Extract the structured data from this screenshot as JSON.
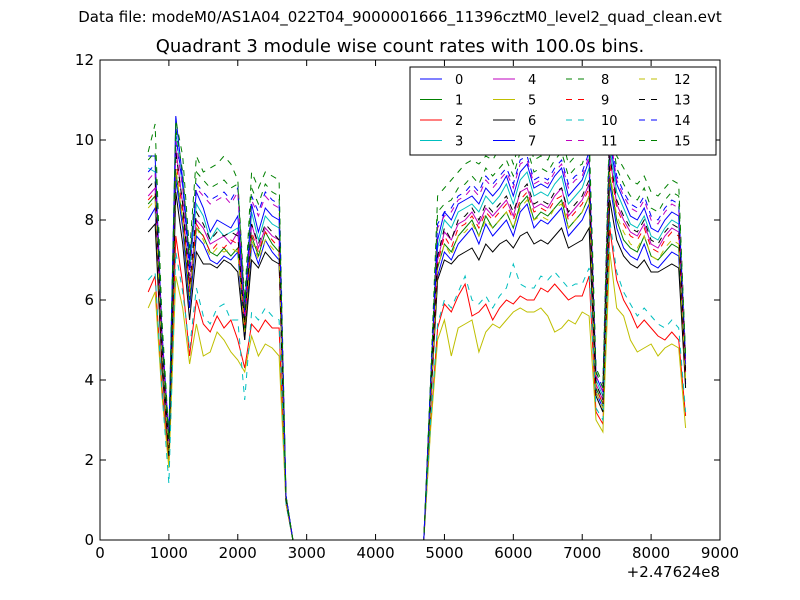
{
  "figure": {
    "suptitle": "Data file: modeM0/AS1A04_022T04_9000001666_11396cztM0_level2_quad_clean.evt"
  },
  "chart_data": {
    "type": "line",
    "title": "Quadrant 3 module wise count rates with 100.0s bins.",
    "xlabel": "",
    "ylabel": "",
    "x_offset_label": "+2.47624e8",
    "xlim": [
      0,
      9000
    ],
    "ylim": [
      0,
      12
    ],
    "xticks": [
      0,
      1000,
      2000,
      3000,
      4000,
      5000,
      6000,
      7000,
      8000,
      9000
    ],
    "xtick_labels": [
      "0",
      "1000",
      "2000",
      "3000",
      "4000",
      "5000",
      "6000",
      "7000",
      "8000",
      "9000"
    ],
    "yticks": [
      0,
      2,
      4,
      6,
      8,
      10,
      12
    ],
    "ytick_labels": [
      "0",
      "2",
      "4",
      "6",
      "8",
      "10",
      "12"
    ],
    "grid": false,
    "legend_position": "top-right",
    "legend_columns": 4,
    "x": [
      700,
      800,
      900,
      1000,
      1100,
      1200,
      1300,
      1400,
      1500,
      1600,
      1700,
      1800,
      1900,
      2000,
      2100,
      2200,
      2300,
      2400,
      2500,
      2600,
      2700,
      2800,
      2900,
      4700,
      4800,
      4900,
      5000,
      5100,
      5200,
      5300,
      5400,
      5500,
      5600,
      5700,
      5800,
      5900,
      6000,
      6100,
      6200,
      6300,
      6400,
      6500,
      6600,
      6700,
      6800,
      6900,
      7000,
      7100,
      7200,
      7300,
      7400,
      7500,
      7600,
      7700,
      7800,
      7900,
      8000,
      8100,
      8200,
      8300,
      8400,
      8500
    ],
    "series": [
      {
        "name": "0",
        "color": "#0000ff",
        "dash": false,
        "values": [
          8.0,
          8.3,
          4.5,
          2.3,
          9.0,
          7.8,
          5.8,
          7.6,
          7.4,
          7.0,
          6.9,
          7.1,
          7.0,
          7.2,
          5.0,
          7.4,
          6.9,
          7.5,
          7.2,
          7.0,
          1.0,
          0,
          0,
          0,
          3.5,
          6.6,
          7.2,
          7.0,
          7.4,
          7.6,
          7.8,
          7.4,
          7.9,
          7.6,
          7.8,
          8.0,
          7.6,
          8.2,
          8.4,
          7.8,
          8.0,
          7.9,
          8.1,
          8.3,
          7.6,
          7.8,
          8.0,
          8.4,
          3.7,
          3.3,
          8.9,
          7.8,
          7.3,
          7.1,
          7.0,
          7.4,
          6.9,
          6.8,
          7.0,
          7.2,
          7.1,
          3.9
        ]
      },
      {
        "name": "1",
        "color": "#008000",
        "dash": false,
        "values": [
          8.4,
          8.6,
          4.6,
          2.2,
          9.2,
          8.0,
          6.0,
          7.8,
          7.6,
          7.2,
          7.1,
          7.3,
          7.1,
          7.3,
          5.2,
          7.6,
          7.1,
          7.7,
          7.4,
          7.2,
          1.0,
          0,
          0,
          0,
          3.6,
          6.8,
          7.4,
          7.2,
          7.6,
          7.8,
          8.0,
          7.6,
          8.1,
          7.8,
          8.0,
          8.2,
          7.8,
          8.4,
          8.6,
          8.0,
          8.2,
          8.1,
          8.3,
          8.5,
          7.8,
          8.0,
          8.2,
          8.6,
          3.8,
          3.4,
          9.1,
          8.0,
          7.5,
          7.3,
          7.2,
          7.6,
          7.1,
          7.0,
          7.2,
          7.4,
          7.3,
          4.0
        ]
      },
      {
        "name": "2",
        "color": "#ff0000",
        "dash": false,
        "values": [
          6.2,
          6.6,
          3.8,
          1.9,
          7.6,
          6.4,
          4.6,
          6.0,
          5.4,
          5.2,
          5.6,
          5.3,
          5.5,
          5.0,
          4.3,
          5.4,
          5.2,
          5.5,
          5.3,
          5.3,
          0.9,
          0,
          0,
          0,
          2.9,
          5.3,
          5.9,
          5.7,
          6.1,
          6.4,
          5.6,
          5.7,
          5.9,
          5.5,
          5.8,
          6.0,
          5.9,
          6.1,
          6.0,
          6.0,
          6.3,
          6.2,
          6.4,
          6.2,
          6.0,
          6.1,
          6.1,
          6.6,
          3.2,
          2.9,
          7.8,
          6.5,
          6.0,
          5.7,
          5.3,
          5.5,
          5.3,
          5.1,
          5.0,
          5.2,
          5.0,
          3.1
        ]
      },
      {
        "name": "3",
        "color": "#00bfbf",
        "dash": false,
        "values": [
          9.3,
          9.2,
          5.0,
          2.5,
          10.2,
          8.8,
          6.8,
          8.4,
          8.1,
          7.5,
          7.8,
          7.6,
          7.7,
          7.8,
          5.6,
          8.2,
          7.5,
          8.1,
          7.9,
          7.8,
          1.1,
          0,
          0,
          0,
          3.9,
          7.3,
          8.0,
          7.8,
          8.2,
          8.3,
          8.4,
          8.2,
          8.6,
          8.4,
          8.6,
          8.9,
          8.4,
          9.0,
          9.2,
          8.6,
          8.7,
          8.6,
          8.9,
          9.1,
          8.4,
          8.6,
          8.8,
          9.3,
          4.0,
          3.6,
          9.8,
          8.7,
          8.3,
          7.9,
          7.8,
          8.1,
          7.6,
          7.5,
          7.8,
          8.0,
          7.9,
          4.3
        ]
      },
      {
        "name": "4",
        "color": "#bf00bf",
        "dash": false,
        "values": [
          8.6,
          8.8,
          4.7,
          2.4,
          9.8,
          8.4,
          6.3,
          8.0,
          7.8,
          7.4,
          7.5,
          7.6,
          7.4,
          7.7,
          5.4,
          7.9,
          7.3,
          7.8,
          7.6,
          7.5,
          1.1,
          0,
          0,
          0,
          3.7,
          7.0,
          7.7,
          7.5,
          7.9,
          8.0,
          8.2,
          7.9,
          8.3,
          8.1,
          8.3,
          8.5,
          8.1,
          8.7,
          8.8,
          8.3,
          8.4,
          8.3,
          8.6,
          8.8,
          8.1,
          8.3,
          8.5,
          8.9,
          3.9,
          3.5,
          9.6,
          8.4,
          8.0,
          7.7,
          7.6,
          7.9,
          7.4,
          7.3,
          7.6,
          7.8,
          7.7,
          4.2
        ]
      },
      {
        "name": "5",
        "color": "#bfbf00",
        "dash": false,
        "values": [
          5.8,
          6.2,
          3.6,
          1.8,
          6.6,
          5.8,
          4.4,
          5.4,
          4.6,
          4.7,
          5.2,
          5.0,
          4.7,
          4.5,
          4.2,
          5.1,
          4.6,
          4.9,
          4.8,
          4.6,
          0.9,
          0,
          0,
          0,
          2.8,
          5.0,
          5.5,
          4.6,
          5.3,
          5.4,
          5.5,
          4.7,
          5.2,
          5.4,
          5.3,
          5.5,
          5.7,
          5.8,
          5.7,
          5.7,
          5.8,
          5.6,
          5.2,
          5.3,
          5.5,
          5.4,
          5.7,
          5.6,
          3.0,
          2.7,
          7.2,
          5.8,
          5.6,
          5.0,
          4.7,
          4.8,
          4.9,
          4.6,
          4.8,
          4.9,
          4.8,
          2.8
        ]
      },
      {
        "name": "6",
        "color": "#000000",
        "dash": false,
        "values": [
          7.7,
          7.9,
          4.3,
          2.1,
          8.7,
          7.4,
          5.5,
          7.2,
          6.9,
          6.9,
          6.8,
          7.0,
          6.9,
          6.7,
          5.0,
          7.0,
          6.8,
          7.2,
          7.0,
          6.9,
          1.0,
          0,
          0,
          0,
          3.4,
          6.5,
          7.0,
          6.9,
          7.1,
          7.2,
          7.3,
          7.0,
          7.4,
          7.2,
          7.4,
          7.5,
          7.3,
          7.6,
          7.7,
          7.4,
          7.5,
          7.4,
          7.6,
          7.8,
          7.3,
          7.4,
          7.5,
          7.8,
          3.6,
          3.2,
          8.5,
          7.5,
          7.1,
          6.9,
          6.8,
          7.0,
          6.7,
          6.7,
          6.8,
          6.9,
          6.8,
          3.8
        ]
      },
      {
        "name": "7",
        "color": "#0000ff",
        "dash": false,
        "values": [
          9.6,
          9.6,
          5.2,
          2.6,
          10.6,
          9.0,
          7.0,
          8.7,
          8.3,
          7.7,
          8.0,
          7.9,
          7.8,
          8.1,
          5.8,
          8.4,
          7.7,
          8.3,
          8.1,
          8.0,
          1.1,
          0,
          0,
          0,
          4.0,
          7.5,
          8.2,
          8.0,
          8.4,
          8.5,
          8.6,
          8.4,
          8.8,
          8.6,
          8.8,
          9.1,
          8.6,
          9.2,
          9.4,
          8.8,
          8.9,
          8.8,
          9.1,
          9.3,
          8.6,
          8.8,
          9.0,
          9.5,
          4.1,
          3.7,
          10.0,
          8.9,
          8.5,
          8.1,
          8.0,
          8.3,
          7.8,
          7.7,
          8.0,
          8.2,
          8.1,
          4.4
        ]
      },
      {
        "name": "8",
        "color": "#008000",
        "dash": true,
        "values": [
          9.7,
          10.4,
          5.5,
          2.6,
          10.5,
          9.6,
          7.2,
          9.6,
          9.2,
          9.3,
          9.4,
          9.6,
          9.4,
          9.0,
          6.0,
          9.2,
          8.8,
          9.2,
          9.1,
          9.0,
          1.1,
          0,
          0,
          0,
          4.1,
          8.6,
          8.8,
          9.0,
          9.2,
          9.4,
          9.5,
          9.4,
          9.6,
          9.5,
          9.8,
          9.9,
          9.4,
          10.0,
          10.2,
          9.5,
          9.6,
          9.5,
          9.9,
          10.1,
          9.4,
          9.6,
          9.8,
          10.2,
          4.3,
          3.9,
          10.8,
          9.6,
          9.3,
          9.0,
          8.9,
          9.1,
          8.7,
          8.6,
          8.8,
          9.0,
          8.9,
          4.6
        ]
      },
      {
        "name": "9",
        "color": "#ff0000",
        "dash": true,
        "values": [
          8.5,
          8.7,
          4.7,
          2.3,
          9.5,
          8.2,
          6.2,
          7.9,
          7.6,
          7.2,
          7.4,
          7.3,
          7.5,
          7.4,
          5.3,
          7.7,
          7.2,
          7.7,
          7.5,
          7.3,
          1.0,
          0,
          0,
          0,
          3.6,
          6.9,
          7.6,
          7.3,
          7.8,
          7.9,
          8.1,
          7.8,
          8.2,
          8.0,
          8.2,
          8.4,
          8.0,
          8.5,
          8.7,
          8.2,
          8.3,
          8.2,
          8.5,
          8.6,
          8.0,
          8.2,
          8.4,
          8.8,
          3.8,
          3.4,
          9.4,
          8.3,
          7.9,
          7.6,
          7.5,
          7.8,
          7.3,
          7.2,
          7.5,
          7.7,
          7.6,
          4.1
        ]
      },
      {
        "name": "10",
        "color": "#00bfbf",
        "dash": true,
        "values": [
          6.5,
          6.7,
          3.7,
          1.4,
          7.2,
          6.2,
          4.8,
          6.3,
          5.6,
          5.4,
          5.8,
          5.9,
          5.5,
          5.5,
          3.5,
          5.7,
          5.5,
          5.8,
          5.6,
          5.5,
          0.9,
          0,
          0,
          0,
          3.0,
          5.4,
          6.0,
          5.8,
          6.2,
          6.6,
          6.0,
          5.9,
          6.1,
          5.8,
          6.1,
          6.3,
          6.9,
          6.4,
          6.3,
          6.3,
          6.6,
          6.5,
          6.7,
          6.5,
          6.3,
          6.4,
          6.4,
          6.8,
          3.3,
          3.0,
          8.0,
          6.7,
          6.2,
          5.9,
          5.6,
          5.8,
          5.6,
          5.4,
          5.3,
          5.5,
          5.3,
          3.2
        ]
      },
      {
        "name": "11",
        "color": "#bf00bf",
        "dash": true,
        "values": [
          9.0,
          9.2,
          5.0,
          2.4,
          10.0,
          8.8,
          6.6,
          8.8,
          8.6,
          8.4,
          8.5,
          8.6,
          8.4,
          8.7,
          5.6,
          8.5,
          8.1,
          8.6,
          8.4,
          8.3,
          1.1,
          0,
          0,
          0,
          3.8,
          7.8,
          8.1,
          8.2,
          8.5,
          8.6,
          8.8,
          8.6,
          9.0,
          8.8,
          9.0,
          9.2,
          8.8,
          9.4,
          9.5,
          8.9,
          9.0,
          8.9,
          9.2,
          9.4,
          8.8,
          9.0,
          9.1,
          9.6,
          4.1,
          3.7,
          10.2,
          9.0,
          8.6,
          8.3,
          8.2,
          8.5,
          8.0,
          7.9,
          8.2,
          8.4,
          8.3,
          4.4
        ]
      },
      {
        "name": "12",
        "color": "#bfbf00",
        "dash": true,
        "values": [
          8.3,
          8.5,
          4.6,
          2.2,
          9.3,
          8.0,
          6.1,
          7.8,
          7.5,
          7.1,
          7.3,
          7.2,
          7.3,
          7.2,
          5.2,
          7.5,
          7.0,
          7.5,
          7.3,
          7.1,
          1.0,
          0,
          0,
          0,
          3.5,
          6.8,
          7.4,
          7.1,
          7.6,
          7.7,
          7.9,
          7.6,
          8.0,
          7.8,
          8.0,
          8.2,
          7.8,
          8.3,
          8.5,
          8.0,
          8.1,
          8.0,
          8.3,
          8.4,
          7.8,
          8.0,
          8.2,
          8.6,
          3.7,
          3.3,
          9.2,
          8.1,
          7.7,
          7.4,
          7.3,
          7.6,
          7.1,
          7.0,
          7.3,
          7.5,
          7.4,
          4.0
        ]
      },
      {
        "name": "13",
        "color": "#000000",
        "dash": true,
        "values": [
          8.8,
          9.0,
          4.8,
          2.3,
          9.7,
          8.4,
          6.4,
          8.2,
          7.9,
          7.5,
          7.7,
          7.6,
          7.7,
          7.6,
          5.4,
          7.9,
          7.4,
          7.9,
          7.7,
          7.5,
          1.0,
          0,
          0,
          0,
          3.7,
          7.1,
          7.8,
          7.5,
          8.0,
          8.1,
          8.3,
          8.0,
          8.4,
          8.2,
          8.4,
          8.6,
          8.2,
          8.7,
          8.9,
          8.4,
          8.5,
          8.4,
          8.7,
          8.8,
          8.2,
          8.4,
          8.6,
          9.0,
          3.9,
          3.5,
          9.6,
          8.5,
          8.1,
          7.8,
          7.7,
          8.0,
          7.5,
          7.4,
          7.7,
          7.9,
          7.8,
          4.2
        ]
      },
      {
        "name": "14",
        "color": "#0000ff",
        "dash": true,
        "values": [
          9.2,
          9.4,
          5.0,
          2.5,
          10.1,
          8.9,
          6.7,
          8.9,
          8.7,
          8.5,
          8.6,
          8.7,
          8.5,
          8.8,
          5.7,
          8.6,
          8.2,
          8.7,
          8.5,
          8.4,
          1.1,
          0,
          0,
          0,
          3.9,
          7.9,
          8.2,
          8.3,
          8.6,
          8.7,
          8.9,
          8.7,
          9.1,
          8.9,
          9.1,
          9.3,
          8.9,
          9.5,
          9.6,
          9.0,
          9.1,
          9.0,
          9.3,
          9.5,
          8.9,
          9.1,
          9.2,
          9.7,
          4.2,
          3.8,
          10.3,
          9.1,
          8.7,
          8.4,
          8.3,
          8.6,
          8.1,
          8.0,
          8.3,
          8.5,
          8.4,
          4.5
        ]
      },
      {
        "name": "15",
        "color": "#008000",
        "dash": true,
        "values": [
          9.5,
          9.7,
          5.2,
          2.5,
          10.3,
          9.2,
          6.9,
          9.2,
          9.0,
          8.8,
          8.9,
          9.0,
          8.8,
          8.9,
          5.8,
          8.8,
          8.4,
          8.9,
          8.7,
          8.6,
          1.1,
          0,
          0,
          0,
          4.0,
          8.2,
          8.4,
          8.5,
          8.8,
          8.9,
          9.1,
          8.9,
          9.3,
          9.1,
          9.3,
          9.5,
          9.1,
          9.7,
          9.8,
          9.2,
          9.3,
          9.2,
          9.5,
          9.7,
          9.1,
          9.3,
          9.4,
          9.9,
          4.2,
          3.8,
          10.5,
          9.3,
          8.9,
          8.6,
          8.5,
          8.8,
          8.3,
          8.2,
          8.5,
          8.7,
          8.6,
          4.6
        ]
      }
    ]
  }
}
